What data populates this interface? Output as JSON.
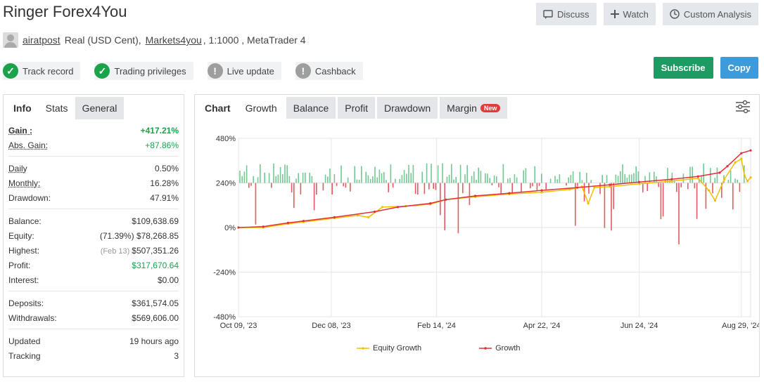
{
  "header": {
    "title": "Ringer Forex4You",
    "buttons": [
      {
        "label": "Discuss",
        "icon": "chat-icon"
      },
      {
        "label": "Watch",
        "icon": "plus-icon"
      },
      {
        "label": "Custom Analysis",
        "icon": "clock-icon"
      }
    ]
  },
  "account": {
    "user": "airatpost",
    "type": "Real (USD Cent),",
    "broker": "Markets4you",
    "leverage": ", 1:1000 , MetaTrader 4"
  },
  "badges": [
    {
      "label": "Track record",
      "status": "ok"
    },
    {
      "label": "Trading privileges",
      "status": "ok"
    },
    {
      "label": "Live update",
      "status": "warn"
    },
    {
      "label": "Cashback",
      "status": "warn"
    }
  ],
  "actions": {
    "subscribe": "Subscribe",
    "copy": "Copy"
  },
  "left_tabs": [
    "Info",
    "Stats",
    "General"
  ],
  "stats": {
    "gain_label": "Gain :",
    "gain": "+417.21%",
    "abs_gain_label": "Abs. Gain:",
    "abs_gain": "+87.86%",
    "daily_label": "Daily",
    "daily": "0.50%",
    "monthly_label": "Monthly:",
    "monthly": "16.28%",
    "drawdown_label": "Drawdown:",
    "drawdown": "47.91%",
    "balance_label": "Balance:",
    "balance": "$109,638.69",
    "equity_label": "Equity:",
    "equity_pct": "(71.39%)",
    "equity": "$78,268.85",
    "highest_label": "Highest:",
    "highest_date": "(Feb 13)",
    "highest": "$507,351.26",
    "profit_label": "Profit:",
    "profit": "$317,670.64",
    "interest_label": "Interest:",
    "interest": "$0.00",
    "deposits_label": "Deposits:",
    "deposits": "$361,574.05",
    "withdrawals_label": "Withdrawals:",
    "withdrawals": "$569,606.00",
    "updated_label": "Updated",
    "updated": "19 hours ago",
    "tracking_label": "Tracking",
    "tracking": "3"
  },
  "chart_tabs": {
    "chart": "Chart",
    "growth": "Growth",
    "balance": "Balance",
    "profit": "Profit",
    "drawdown": "Drawdown",
    "margin": "Margin",
    "new_badge": "New"
  },
  "colors": {
    "green": "#1aa34a",
    "red": "#e0303a",
    "yellow": "#f0c000",
    "subscribe": "#1e9b63",
    "copy": "#3d9bdb"
  },
  "chart_data": {
    "type": "line",
    "title": "",
    "ylabel": "",
    "xlabel": "",
    "ylim": [
      -480,
      480
    ],
    "yticks": [
      "480%",
      "240%",
      "0%",
      "-240%",
      "-480%"
    ],
    "ytick_values": [
      480,
      240,
      0,
      -240,
      -480
    ],
    "xticks": [
      "Oct 09, '23",
      "Dec 08, '23",
      "Feb 14, '24",
      "Apr 22, '24",
      "Jun 24, '24",
      "Aug 29, '24"
    ],
    "xtick_dates": [
      "2023-10-09",
      "2023-12-08",
      "2024-02-14",
      "2024-04-22",
      "2024-06-24",
      "2024-08-29"
    ],
    "x_range": [
      "2023-10-09",
      "2024-09-04"
    ],
    "series": [
      {
        "name": "Growth",
        "color": "#e0303a",
        "points": [
          [
            "2023-10-09",
            0
          ],
          [
            "2023-10-25",
            5
          ],
          [
            "2023-11-10",
            25
          ],
          [
            "2023-11-20",
            35
          ],
          [
            "2023-12-10",
            55
          ],
          [
            "2024-01-05",
            85
          ],
          [
            "2024-01-20",
            110
          ],
          [
            "2024-02-10",
            130
          ],
          [
            "2024-02-20",
            150
          ],
          [
            "2024-03-10",
            170
          ],
          [
            "2024-04-01",
            185
          ],
          [
            "2024-04-22",
            200
          ],
          [
            "2024-05-15",
            215
          ],
          [
            "2024-06-05",
            230
          ],
          [
            "2024-06-24",
            245
          ],
          [
            "2024-07-15",
            260
          ],
          [
            "2024-08-01",
            275
          ],
          [
            "2024-08-15",
            295
          ],
          [
            "2024-08-20",
            330
          ],
          [
            "2024-08-29",
            400
          ],
          [
            "2024-09-04",
            415
          ]
        ]
      },
      {
        "name": "Equity Growth",
        "color": "#f0c000",
        "points": [
          [
            "2023-10-09",
            0
          ],
          [
            "2023-10-25",
            0
          ],
          [
            "2023-11-10",
            20
          ],
          [
            "2023-11-20",
            30
          ],
          [
            "2023-12-10",
            50
          ],
          [
            "2023-12-25",
            65
          ],
          [
            "2024-01-01",
            55
          ],
          [
            "2024-01-10",
            110
          ],
          [
            "2024-01-25",
            115
          ],
          [
            "2024-02-10",
            125
          ],
          [
            "2024-02-20",
            150
          ],
          [
            "2024-03-10",
            165
          ],
          [
            "2024-04-01",
            180
          ],
          [
            "2024-04-22",
            190
          ],
          [
            "2024-05-10",
            205
          ],
          [
            "2024-05-18",
            220
          ],
          [
            "2024-05-22",
            130
          ],
          [
            "2024-05-26",
            215
          ],
          [
            "2024-06-05",
            220
          ],
          [
            "2024-06-24",
            235
          ],
          [
            "2024-07-15",
            250
          ],
          [
            "2024-08-01",
            265
          ],
          [
            "2024-08-08",
            200
          ],
          [
            "2024-08-12",
            145
          ],
          [
            "2024-08-18",
            260
          ],
          [
            "2024-08-25",
            350
          ],
          [
            "2024-08-29",
            370
          ],
          [
            "2024-08-31",
            280
          ],
          [
            "2024-09-02",
            250
          ],
          [
            "2024-09-04",
            270
          ]
        ]
      }
    ],
    "daily_bars": {
      "note": "green bars positive daily change, red bars negative",
      "positive_color": "#1aa34a",
      "negative_color": "#e0303a"
    },
    "legend": [
      "Equity Growth",
      "Growth"
    ],
    "legend_position": "bottom",
    "grid": true
  }
}
